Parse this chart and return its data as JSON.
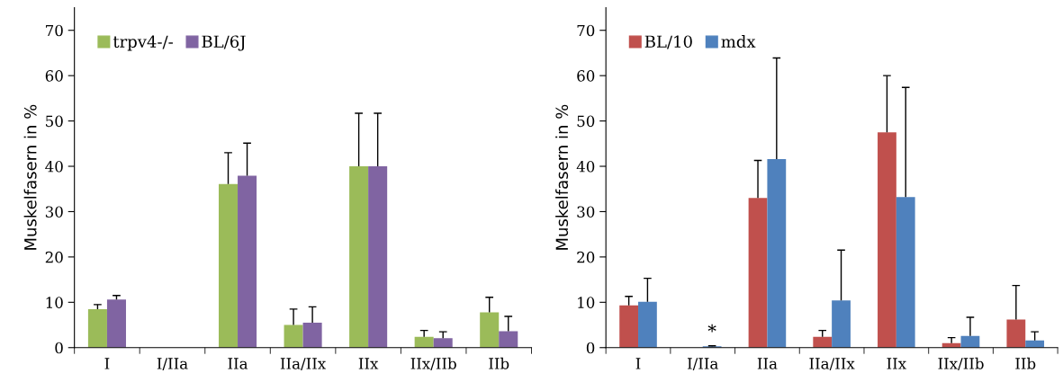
{
  "chart_data": [
    {
      "type": "bar",
      "ylabel": "Muskelfasern in %",
      "categories": [
        "I",
        "I/IIa",
        "IIa",
        "IIa/IIx",
        "IIx",
        "IIx/IIb",
        "IIb"
      ],
      "series": [
        {
          "name": "trpv4-/-",
          "color": "#9bbb59",
          "values": [
            8.5,
            0,
            36.1,
            5.0,
            40.0,
            2.4,
            7.8
          ],
          "errors": [
            [
              8.5,
              9.5
            ],
            null,
            [
              36.1,
              43.0
            ],
            [
              5.0,
              8.5
            ],
            [
              40.0,
              51.7
            ],
            [
              2.4,
              3.8
            ],
            [
              7.8,
              11.1
            ]
          ]
        },
        {
          "name": "BL/6J",
          "color": "#8064a2",
          "values": [
            10.6,
            0,
            37.9,
            5.5,
            40.0,
            2.1,
            3.6
          ],
          "errors": [
            [
              10.6,
              11.5
            ],
            null,
            [
              37.9,
              45.1
            ],
            [
              5.5,
              9.0
            ],
            [
              40.0,
              51.7
            ],
            [
              2.1,
              3.5
            ],
            [
              3.6,
              6.9
            ]
          ]
        }
      ],
      "ylim": [
        0,
        75
      ],
      "yticks": [
        0,
        10,
        20,
        30,
        40,
        50,
        60,
        70
      ],
      "grid": false,
      "legend": "top left"
    },
    {
      "type": "bar",
      "ylabel": "Muskelfasern in %",
      "categories": [
        "I",
        "I/IIa",
        "IIa",
        "IIa/IIx",
        "IIx",
        "IIx/IIb",
        "IIb"
      ],
      "series": [
        {
          "name": "BL/10",
          "color": "#c0504d",
          "values": [
            9.3,
            0,
            33.0,
            2.4,
            47.5,
            1.0,
            6.2
          ],
          "errors": [
            [
              9.3,
              11.3
            ],
            null,
            [
              33.0,
              41.3
            ],
            [
              2.4,
              3.8
            ],
            [
              47.5,
              60.0
            ],
            [
              1.0,
              2.2
            ],
            [
              6.2,
              13.7
            ]
          ]
        },
        {
          "name": "mdx",
          "color": "#4f81bd",
          "values": [
            10.1,
            0.3,
            41.6,
            10.4,
            33.2,
            2.6,
            1.6
          ],
          "errors": [
            [
              10.1,
              15.3
            ],
            [
              0.3,
              0.4
            ],
            [
              41.6,
              63.9
            ],
            [
              10.4,
              21.5
            ],
            [
              33.2,
              57.4
            ],
            [
              2.6,
              6.7
            ],
            [
              1.6,
              3.5
            ]
          ]
        }
      ],
      "annotations": [
        {
          "text": "*",
          "x": "I/IIa",
          "y": 0.4
        }
      ],
      "ylim": [
        0,
        75
      ],
      "yticks": [
        0,
        10,
        20,
        30,
        40,
        50,
        60,
        70
      ],
      "grid": false,
      "legend": "top left"
    }
  ]
}
